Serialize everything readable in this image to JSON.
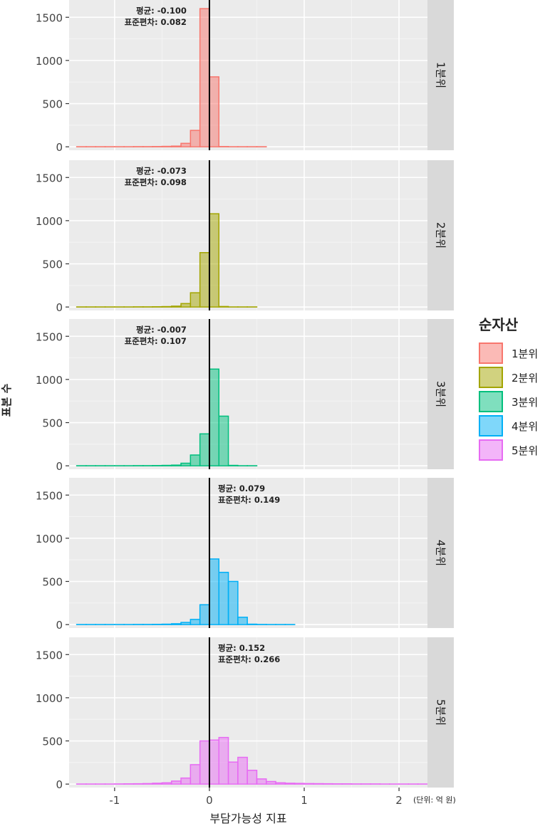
{
  "chart_data": {
    "type": "histogram-faceted",
    "xlabel": "부담가능성 지표",
    "ylabel": "표본 수",
    "unit_note": "(단위: 억 원)",
    "xlim": [
      -1.48,
      2.3
    ],
    "ylim": [
      -40,
      1700
    ],
    "x_ticks": [
      -1,
      0,
      1,
      2
    ],
    "x_tick_labels": [
      "-1",
      "0",
      "1",
      "2"
    ],
    "y_ticks": [
      0,
      500,
      1000,
      1500
    ],
    "y_tick_labels": [
      "0",
      "500",
      "1000",
      "1500"
    ],
    "vline_x": 0,
    "bin_width": 0.1,
    "legend": {
      "title": "순자산",
      "position": "right",
      "items": [
        "1분위",
        "2분위",
        "3분위",
        "4분위",
        "5분위"
      ]
    },
    "series": [
      {
        "name": "1분위",
        "strip": "1분위",
        "stroke": "#F8766D",
        "fill": "#F8766D",
        "annotation": {
          "mean_label": "평균: -0.100",
          "sd_label": "표준편차: 0.082",
          "side": "left"
        },
        "bins": [
          [
            -1.4,
            1
          ],
          [
            -1.3,
            1
          ],
          [
            -1.2,
            1
          ],
          [
            -1.1,
            1
          ],
          [
            -1.0,
            1
          ],
          [
            -0.9,
            1
          ],
          [
            -0.8,
            2
          ],
          [
            -0.7,
            2
          ],
          [
            -0.6,
            3
          ],
          [
            -0.5,
            5
          ],
          [
            -0.4,
            8
          ],
          [
            -0.3,
            40
          ],
          [
            -0.2,
            190
          ],
          [
            -0.1,
            1600
          ],
          [
            0.0,
            810
          ],
          [
            0.1,
            3
          ],
          [
            0.2,
            1
          ],
          [
            0.3,
            1
          ],
          [
            0.4,
            1
          ],
          [
            0.5,
            1
          ],
          [
            0.6,
            0
          ],
          [
            0.7,
            0
          ],
          [
            0.8,
            0
          ],
          [
            0.9,
            0
          ],
          [
            1.0,
            0
          ],
          [
            1.1,
            0
          ],
          [
            1.2,
            0
          ],
          [
            1.3,
            0
          ],
          [
            1.4,
            0
          ],
          [
            1.5,
            0
          ],
          [
            1.6,
            0
          ],
          [
            1.7,
            0
          ],
          [
            1.8,
            0
          ],
          [
            1.9,
            0
          ],
          [
            2.0,
            0
          ],
          [
            2.1,
            0
          ],
          [
            2.2,
            0
          ]
        ]
      },
      {
        "name": "2분위",
        "strip": "2분위",
        "stroke": "#A3A500",
        "fill": "#A3A500",
        "annotation": {
          "mean_label": "평균: -0.073",
          "sd_label": "표준편차: 0.098",
          "side": "left"
        },
        "bins": [
          [
            -1.4,
            1
          ],
          [
            -1.3,
            1
          ],
          [
            -1.2,
            1
          ],
          [
            -1.1,
            1
          ],
          [
            -1.0,
            1
          ],
          [
            -0.9,
            1
          ],
          [
            -0.8,
            2
          ],
          [
            -0.7,
            2
          ],
          [
            -0.6,
            3
          ],
          [
            -0.5,
            5
          ],
          [
            -0.4,
            10
          ],
          [
            -0.3,
            40
          ],
          [
            -0.2,
            165
          ],
          [
            -0.1,
            630
          ],
          [
            0.0,
            1080
          ],
          [
            0.1,
            6
          ],
          [
            0.2,
            1
          ],
          [
            0.3,
            1
          ],
          [
            0.4,
            1
          ],
          [
            0.5,
            0
          ],
          [
            0.6,
            0
          ],
          [
            0.7,
            0
          ],
          [
            0.8,
            0
          ],
          [
            0.9,
            0
          ],
          [
            1.0,
            0
          ],
          [
            1.1,
            0
          ],
          [
            1.2,
            0
          ],
          [
            1.3,
            0
          ],
          [
            1.4,
            0
          ],
          [
            1.5,
            0
          ],
          [
            1.6,
            0
          ],
          [
            1.7,
            0
          ],
          [
            1.8,
            0
          ],
          [
            1.9,
            0
          ],
          [
            2.0,
            0
          ],
          [
            2.1,
            0
          ],
          [
            2.2,
            0
          ]
        ]
      },
      {
        "name": "3분위",
        "strip": "3분위",
        "stroke": "#00BF7D",
        "fill": "#00BF7D",
        "annotation": {
          "mean_label": "평균: -0.007",
          "sd_label": "표준편차: 0.107",
          "side": "left"
        },
        "bins": [
          [
            -1.4,
            1
          ],
          [
            -1.3,
            1
          ],
          [
            -1.2,
            1
          ],
          [
            -1.1,
            1
          ],
          [
            -1.0,
            1
          ],
          [
            -0.9,
            1
          ],
          [
            -0.8,
            2
          ],
          [
            -0.7,
            2
          ],
          [
            -0.6,
            3
          ],
          [
            -0.5,
            5
          ],
          [
            -0.4,
            8
          ],
          [
            -0.3,
            30
          ],
          [
            -0.2,
            125
          ],
          [
            -0.1,
            370
          ],
          [
            0.0,
            1120
          ],
          [
            0.1,
            575
          ],
          [
            0.2,
            5
          ],
          [
            0.3,
            1
          ],
          [
            0.4,
            1
          ],
          [
            0.5,
            0
          ],
          [
            0.6,
            0
          ],
          [
            0.7,
            0
          ],
          [
            0.8,
            0
          ],
          [
            0.9,
            0
          ],
          [
            1.0,
            0
          ],
          [
            1.1,
            0
          ],
          [
            1.2,
            0
          ],
          [
            1.3,
            0
          ],
          [
            1.4,
            0
          ],
          [
            1.5,
            0
          ],
          [
            1.6,
            0
          ],
          [
            1.7,
            0
          ],
          [
            1.8,
            0
          ],
          [
            1.9,
            0
          ],
          [
            2.0,
            0
          ],
          [
            2.1,
            0
          ],
          [
            2.2,
            0
          ]
        ]
      },
      {
        "name": "4분위",
        "strip": "4분위",
        "stroke": "#00B0F6",
        "fill": "#00B0F6",
        "annotation": {
          "mean_label": "평균: 0.079",
          "sd_label": "표준편차: 0.149",
          "side": "right"
        },
        "bins": [
          [
            -1.4,
            1
          ],
          [
            -1.3,
            1
          ],
          [
            -1.2,
            1
          ],
          [
            -1.1,
            1
          ],
          [
            -1.0,
            1
          ],
          [
            -0.9,
            1
          ],
          [
            -0.8,
            2
          ],
          [
            -0.7,
            2
          ],
          [
            -0.6,
            3
          ],
          [
            -0.5,
            5
          ],
          [
            -0.4,
            10
          ],
          [
            -0.3,
            25
          ],
          [
            -0.2,
            60
          ],
          [
            -0.1,
            230
          ],
          [
            0.0,
            760
          ],
          [
            0.1,
            605
          ],
          [
            0.2,
            500
          ],
          [
            0.3,
            85
          ],
          [
            0.4,
            5
          ],
          [
            0.5,
            2
          ],
          [
            0.6,
            1
          ],
          [
            0.7,
            1
          ],
          [
            0.8,
            1
          ],
          [
            0.9,
            0
          ],
          [
            1.0,
            0
          ],
          [
            1.1,
            0
          ],
          [
            1.2,
            0
          ],
          [
            1.3,
            0
          ],
          [
            1.4,
            0
          ],
          [
            1.5,
            0
          ],
          [
            1.6,
            0
          ],
          [
            1.7,
            0
          ],
          [
            1.8,
            0
          ],
          [
            1.9,
            0
          ],
          [
            2.0,
            0
          ],
          [
            2.1,
            0
          ],
          [
            2.2,
            0
          ]
        ]
      },
      {
        "name": "5분위",
        "strip": "5분위",
        "stroke": "#E76BF3",
        "fill": "#E76BF3",
        "annotation": {
          "mean_label": "평균: 0.152",
          "sd_label": "표준편차: 0.266",
          "side": "right"
        },
        "bins": [
          [
            -1.4,
            1
          ],
          [
            -1.3,
            1
          ],
          [
            -1.2,
            1
          ],
          [
            -1.1,
            1
          ],
          [
            -1.0,
            2
          ],
          [
            -0.9,
            3
          ],
          [
            -0.8,
            4
          ],
          [
            -0.7,
            6
          ],
          [
            -0.6,
            10
          ],
          [
            -0.5,
            15
          ],
          [
            -0.4,
            35
          ],
          [
            -0.3,
            70
          ],
          [
            -0.2,
            225
          ],
          [
            -0.1,
            500
          ],
          [
            0.0,
            510
          ],
          [
            0.1,
            540
          ],
          [
            0.2,
            255
          ],
          [
            0.3,
            310
          ],
          [
            0.4,
            160
          ],
          [
            0.5,
            60
          ],
          [
            0.6,
            30
          ],
          [
            0.7,
            15
          ],
          [
            0.8,
            10
          ],
          [
            0.9,
            8
          ],
          [
            1.0,
            6
          ],
          [
            1.1,
            5
          ],
          [
            1.2,
            4
          ],
          [
            1.3,
            3
          ],
          [
            1.4,
            3
          ],
          [
            1.5,
            2
          ],
          [
            1.6,
            2
          ],
          [
            1.7,
            2
          ],
          [
            1.8,
            1
          ],
          [
            1.9,
            1
          ],
          [
            2.0,
            1
          ],
          [
            2.1,
            1
          ],
          [
            2.2,
            1
          ]
        ]
      }
    ]
  }
}
